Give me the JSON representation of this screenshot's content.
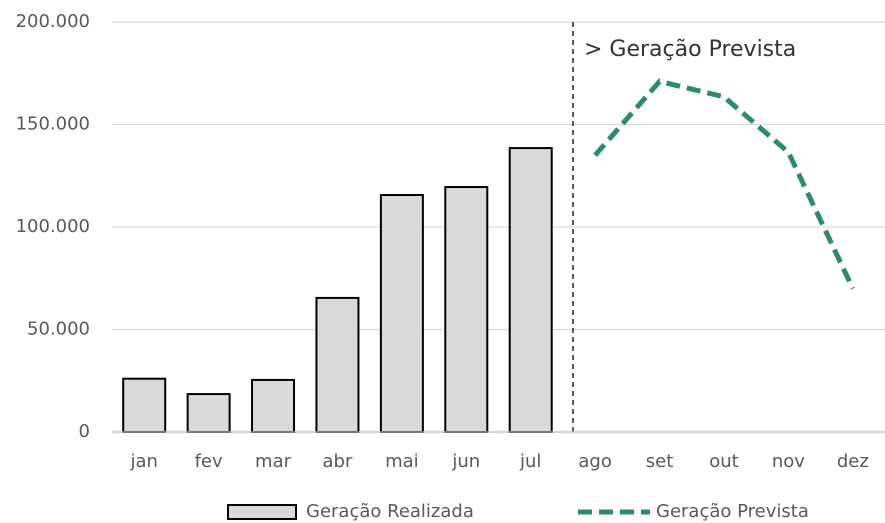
{
  "chart_data": {
    "type": "combo",
    "annotation": "> Geração Prevista",
    "categories": [
      "jan",
      "fev",
      "mar",
      "abr",
      "mai",
      "jun",
      "jul",
      "ago",
      "set",
      "out",
      "nov",
      "dez"
    ],
    "series": [
      {
        "name": "Geração Realizada",
        "type": "bar",
        "color": "#d9d9d9",
        "values": [
          26000,
          18500,
          25400,
          65400,
          115600,
          119500,
          138500,
          null,
          null,
          null,
          null,
          null
        ]
      },
      {
        "name": "Geração Prevista",
        "type": "line",
        "color": "#2e8b6a",
        "values": [
          null,
          null,
          null,
          null,
          null,
          null,
          null,
          135000,
          171000,
          163500,
          136500,
          70000
        ]
      }
    ],
    "ylim": [
      0,
      200000
    ],
    "yticks": [
      0,
      {
        "value": 50000,
        "label": "50.000"
      },
      {
        "value": 100000,
        "label": "100.000"
      },
      {
        "value": 150000,
        "label": "150.000"
      },
      {
        "value": 200000,
        "label": "200.000"
      }
    ],
    "grid": true
  }
}
